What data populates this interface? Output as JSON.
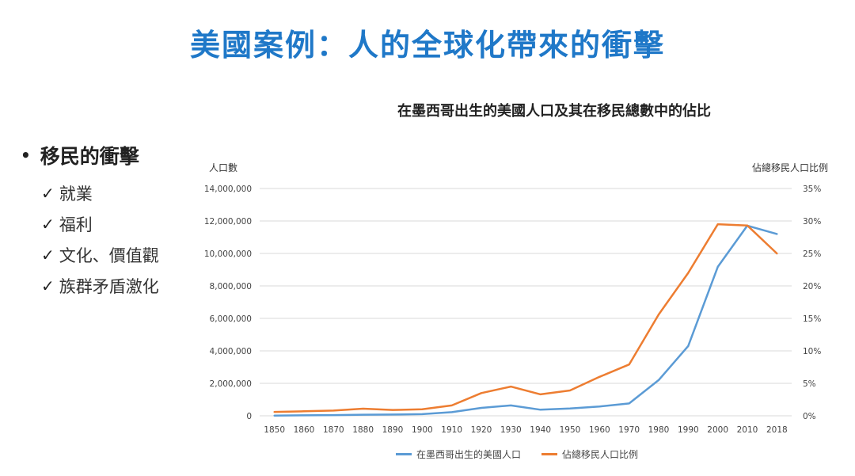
{
  "slide": {
    "title": "美國案例：人的全球化帶來的衝擊",
    "bullet": "移民的衝擊",
    "sub_items": [
      "就業",
      "福利",
      "文化、價值觀",
      "族群矛盾激化"
    ]
  },
  "colors": {
    "title": "#1f78c8",
    "series1": "#5b9bd5",
    "series2": "#ed7d31",
    "grid": "#d9d9d9"
  },
  "chart_data": {
    "type": "line",
    "title": "在墨西哥出生的美國人口及其在移民總數中的佔比",
    "ylabel_left": "人口數",
    "ylabel_right": "佔總移民人口比例",
    "categories": [
      "1850",
      "1860",
      "1870",
      "1880",
      "1890",
      "1900",
      "1910",
      "1920",
      "1930",
      "1940",
      "1950",
      "1960",
      "1970",
      "1980",
      "1990",
      "2000",
      "2010",
      "2018"
    ],
    "left_axis": {
      "min": 0,
      "max": 14000000,
      "ticks": [
        "0",
        "2,000,000",
        "4,000,000",
        "6,000,000",
        "8,000,000",
        "10,000,000",
        "12,000,000",
        "14,000,000"
      ]
    },
    "right_axis": {
      "min": 0,
      "max": 35,
      "ticks": [
        "0%",
        "5%",
        "10%",
        "15%",
        "20%",
        "25%",
        "30%",
        "35%"
      ]
    },
    "series": [
      {
        "name": "在墨西哥出生的美國人口",
        "axis": "left",
        "values": [
          13000,
          27000,
          42000,
          68000,
          78000,
          104000,
          222000,
          486000,
          641000,
          377000,
          451000,
          576000,
          760000,
          2199000,
          4298000,
          9178000,
          11711000,
          11200000
        ]
      },
      {
        "name": "佔總移民人口比例",
        "axis": "right",
        "values": [
          0.6,
          0.7,
          0.8,
          1.1,
          0.9,
          1.0,
          1.6,
          3.5,
          4.5,
          3.3,
          3.9,
          6.0,
          7.9,
          15.6,
          22.0,
          29.5,
          29.3,
          25.0
        ]
      }
    ]
  }
}
